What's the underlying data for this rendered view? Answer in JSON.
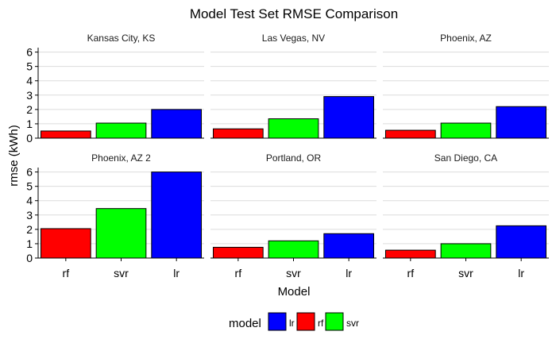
{
  "chart_data": {
    "type": "bar",
    "title": "Model Test Set RMSE Comparison",
    "xlabel": "Model",
    "ylabel": "rmse (kWh)",
    "categories": [
      "rf",
      "svr",
      "lr"
    ],
    "ylim": [
      0,
      6.2
    ],
    "yticks": [
      "0",
      "1",
      "2",
      "3",
      "4",
      "5",
      "6"
    ],
    "grid": true,
    "legend": {
      "title": "model",
      "position": "bottom",
      "entries": [
        {
          "label": "lr",
          "color": "#0000ff"
        },
        {
          "label": "rf",
          "color": "#ff0000"
        },
        {
          "label": "svr",
          "color": "#00ff00"
        }
      ]
    },
    "colors": {
      "rf": "#ff0000",
      "svr": "#00ff00",
      "lr": "#0000ff"
    },
    "panels": [
      {
        "name": "Kansas City, KS",
        "values": [
          0.5,
          1.05,
          2.0
        ]
      },
      {
        "name": "Las Vegas, NV",
        "values": [
          0.65,
          1.35,
          2.9
        ]
      },
      {
        "name": "Phoenix, AZ",
        "values": [
          0.55,
          1.05,
          2.2
        ]
      },
      {
        "name": "Phoenix, AZ 2",
        "values": [
          2.05,
          3.45,
          6.0
        ]
      },
      {
        "name": "Portland, OR",
        "values": [
          0.75,
          1.2,
          1.7
        ]
      },
      {
        "name": "San Diego, CA",
        "values": [
          0.55,
          1.0,
          2.25
        ]
      }
    ]
  }
}
